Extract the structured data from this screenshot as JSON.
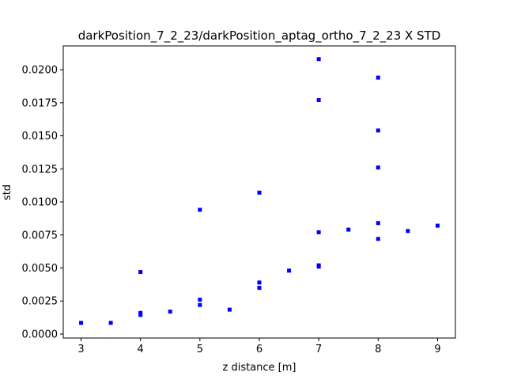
{
  "chart_data": {
    "type": "scatter",
    "title": "darkPosition_7_2_23/darkPosition_aptag_ortho_7_2_23 X STD",
    "xlabel": "z distance [m]",
    "ylabel": "std",
    "xlim": [
      2.7,
      9.3
    ],
    "ylim": [
      -0.0003,
      0.0218
    ],
    "xticks": [
      3,
      4,
      5,
      6,
      7,
      8,
      9
    ],
    "xtick_labels": [
      "3",
      "4",
      "5",
      "6",
      "7",
      "8",
      "9"
    ],
    "yticks": [
      0.0,
      0.0025,
      0.005,
      0.0075,
      0.01,
      0.0125,
      0.015,
      0.0175,
      0.02
    ],
    "ytick_labels": [
      "0.0000",
      "0.0025",
      "0.0050",
      "0.0075",
      "0.0100",
      "0.0125",
      "0.0150",
      "0.0175",
      "0.0200"
    ],
    "grid": false,
    "marker_color": "#0000ff",
    "series": [
      {
        "name": "X STD",
        "points": [
          [
            3.0,
            0.00085
          ],
          [
            3.5,
            0.00085
          ],
          [
            4.0,
            0.0047
          ],
          [
            4.0,
            0.0016
          ],
          [
            4.0,
            0.00145
          ],
          [
            4.5,
            0.0017
          ],
          [
            5.0,
            0.0094
          ],
          [
            5.0,
            0.0026
          ],
          [
            5.0,
            0.0022
          ],
          [
            5.5,
            0.00185
          ],
          [
            6.0,
            0.0107
          ],
          [
            6.0,
            0.0039
          ],
          [
            6.0,
            0.0035
          ],
          [
            6.5,
            0.0048
          ],
          [
            7.0,
            0.0208
          ],
          [
            7.0,
            0.0177
          ],
          [
            7.0,
            0.0077
          ],
          [
            7.0,
            0.0052
          ],
          [
            7.0,
            0.0051
          ],
          [
            7.5,
            0.0079
          ],
          [
            8.0,
            0.0194
          ],
          [
            8.0,
            0.0154
          ],
          [
            8.0,
            0.0126
          ],
          [
            8.0,
            0.0084
          ],
          [
            8.0,
            0.0072
          ],
          [
            8.5,
            0.0078
          ],
          [
            9.0,
            0.0082
          ]
        ]
      }
    ]
  }
}
